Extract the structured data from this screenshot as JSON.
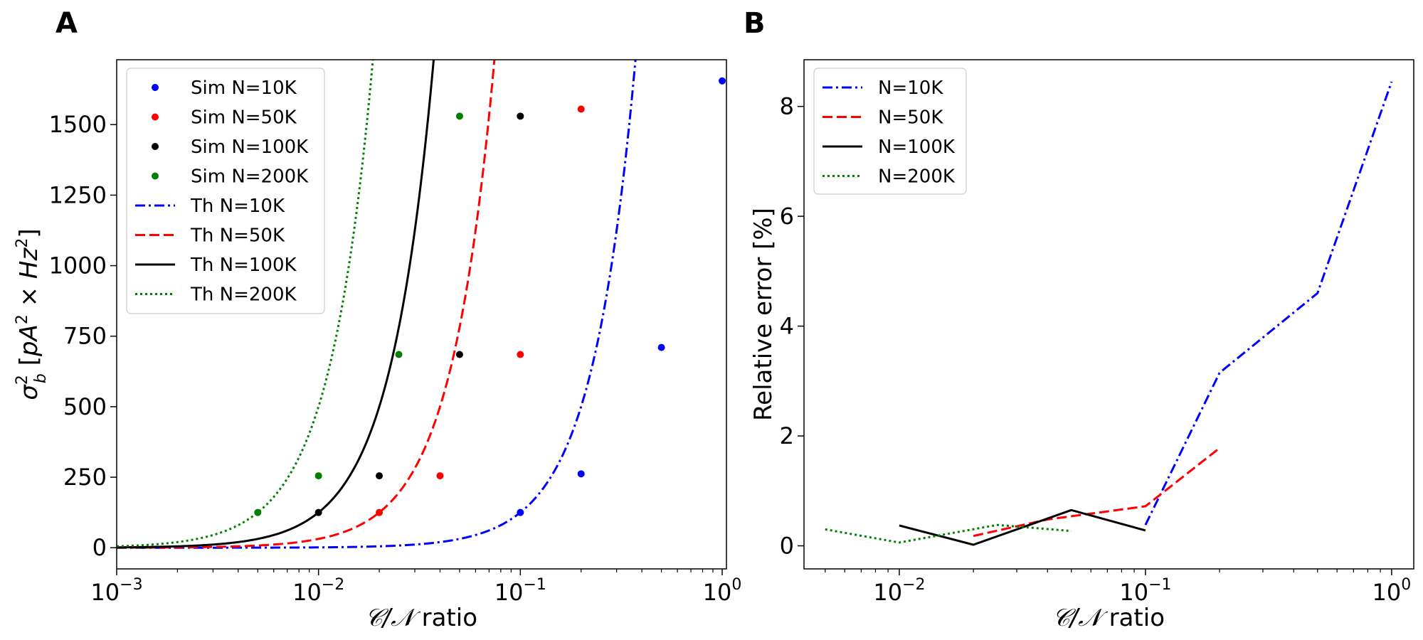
{
  "panels": {
    "A": {
      "letter": "A"
    },
    "B": {
      "letter": "B"
    }
  },
  "chart_data": [
    {
      "id": "A",
      "type": "line",
      "xscale": "log",
      "xlim": [
        0.001,
        1.05
      ],
      "ylim": [
        -75,
        1730
      ],
      "xticks": [
        {
          "value": 0.001,
          "base": "10",
          "exp": "−3"
        },
        {
          "value": 0.01,
          "base": "10",
          "exp": "−2"
        },
        {
          "value": 0.1,
          "base": "10",
          "exp": "−1"
        },
        {
          "value": 1,
          "base": "10",
          "exp": "0"
        }
      ],
      "yticks": [
        0,
        250,
        500,
        750,
        1000,
        1250,
        1500
      ],
      "xlabel_main": "𝒞/𝒩",
      "xlabel_suffix": " ratio",
      "ylabel": "σ²_b [pA² × Hz²]",
      "ylabel_parts": {
        "sigma": "σ",
        "sup1": "2",
        "sub": "b",
        "open": " [",
        "pa": "pA",
        "sup2": "2",
        "times": " × ",
        "hz": "Hz",
        "sup3": "2",
        "close": "]"
      },
      "legend": {
        "position": "upper left"
      },
      "series": [
        {
          "name": "Sim N=10K",
          "kind": "scatter",
          "color": "#0000ff",
          "x": [
            0.1,
            0.2,
            0.5,
            1.0
          ],
          "y": [
            125,
            262,
            710,
            1655
          ]
        },
        {
          "name": "Sim N=50K",
          "kind": "scatter",
          "color": "#ff0000",
          "x": [
            0.02,
            0.04,
            0.1,
            0.2
          ],
          "y": [
            125,
            255,
            685,
            1555
          ]
        },
        {
          "name": "Sim N=100K",
          "kind": "scatter",
          "color": "#000000",
          "x": [
            0.01,
            0.02,
            0.05,
            0.1
          ],
          "y": [
            125,
            255,
            685,
            1530
          ]
        },
        {
          "name": "Sim N=200K",
          "kind": "scatter",
          "color": "#008000",
          "x": [
            0.005,
            0.01,
            0.025,
            0.05
          ],
          "y": [
            125,
            255,
            685,
            1530
          ]
        },
        {
          "name": "Th N=10K",
          "kind": "line",
          "dash": "dashdot",
          "color": "#0000ff",
          "xmax": 1.0
        },
        {
          "name": "Th N=50K",
          "kind": "line",
          "dash": "dashed",
          "color": "#ff0000",
          "xmax": 0.2
        },
        {
          "name": "Th N=100K",
          "kind": "line",
          "dash": "solid",
          "color": "#000000",
          "xmax": 0.1
        },
        {
          "name": "Th N=200K",
          "kind": "line",
          "dash": "dotted",
          "color": "#008000",
          "xmax": 0.05
        }
      ]
    },
    {
      "id": "B",
      "type": "line",
      "xscale": "log",
      "xlim": [
        0.0041,
        1.23
      ],
      "ylim": [
        -0.42,
        8.85
      ],
      "xticks": [
        {
          "value": 0.01,
          "base": "10",
          "exp": "−2"
        },
        {
          "value": 0.1,
          "base": "10",
          "exp": "−1"
        },
        {
          "value": 1,
          "base": "10",
          "exp": "0"
        }
      ],
      "yticks": [
        0,
        2,
        4,
        6,
        8
      ],
      "xlabel_main": "𝒞/𝒩",
      "xlabel_suffix": " ratio",
      "ylabel": "Relative error    [%]",
      "legend": {
        "position": "upper left"
      },
      "series": [
        {
          "name": "N=10K",
          "dash": "dashdot",
          "color": "#0000ff",
          "x": [
            0.1,
            0.2,
            0.5,
            1.0
          ],
          "y": [
            0.38,
            3.15,
            4.6,
            8.45
          ]
        },
        {
          "name": "N=50K",
          "dash": "dashed",
          "color": "#ff0000",
          "x": [
            0.02,
            0.04,
            0.1,
            0.2
          ],
          "y": [
            0.18,
            0.48,
            0.72,
            1.78
          ]
        },
        {
          "name": "N=100K",
          "dash": "solid",
          "color": "#000000",
          "x": [
            0.01,
            0.02,
            0.05,
            0.1
          ],
          "y": [
            0.37,
            0.02,
            0.65,
            0.28
          ]
        },
        {
          "name": "N=200K",
          "dash": "dotted",
          "color": "#008000",
          "x": [
            0.005,
            0.01,
            0.025,
            0.05
          ],
          "y": [
            0.3,
            0.06,
            0.38,
            0.27
          ]
        }
      ]
    }
  ]
}
